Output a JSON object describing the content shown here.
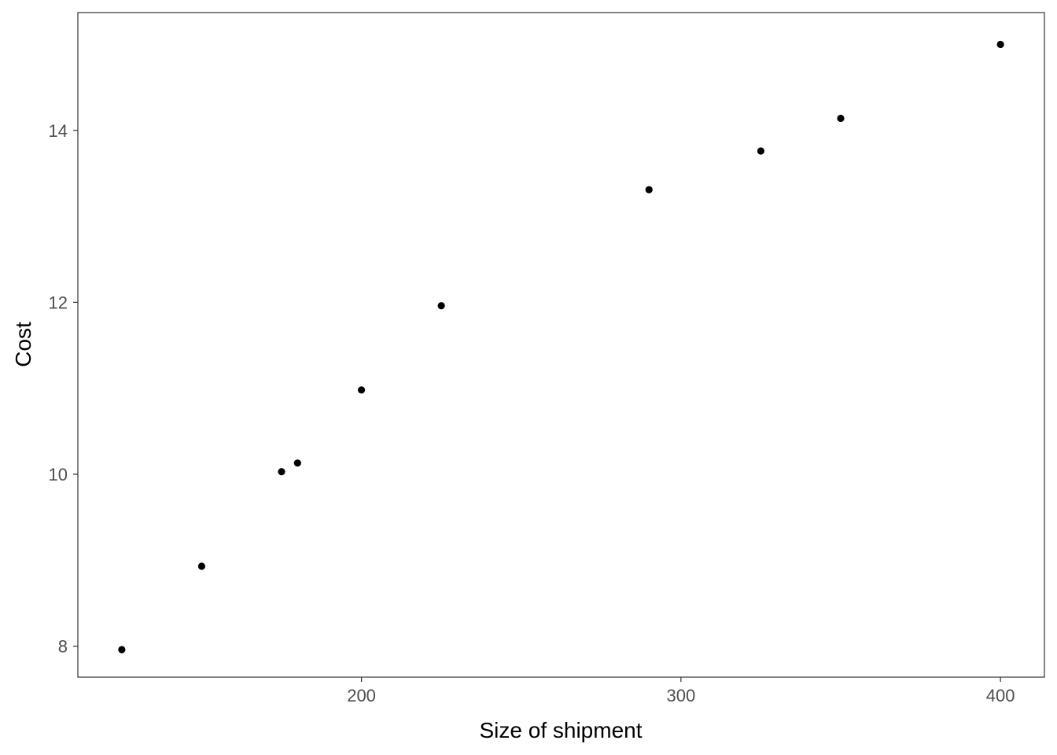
{
  "chart_data": {
    "type": "scatter",
    "title": "",
    "xlabel": "Size of shipment",
    "ylabel": "Cost",
    "xlim": [
      111.25,
      413.75
    ],
    "ylim": [
      7.64,
      15.37
    ],
    "x_ticks": [
      200,
      300,
      400
    ],
    "y_ticks": [
      8,
      10,
      12,
      14
    ],
    "grid": false,
    "legend": "none",
    "point_color": "#000000",
    "points": [
      {
        "x": 125,
        "y": 7.96
      },
      {
        "x": 150,
        "y": 8.93
      },
      {
        "x": 175,
        "y": 10.03
      },
      {
        "x": 180,
        "y": 10.13
      },
      {
        "x": 200,
        "y": 10.98
      },
      {
        "x": 225,
        "y": 11.96
      },
      {
        "x": 290,
        "y": 13.31
      },
      {
        "x": 325,
        "y": 13.76
      },
      {
        "x": 350,
        "y": 14.14
      },
      {
        "x": 400,
        "y": 15.0
      }
    ]
  }
}
